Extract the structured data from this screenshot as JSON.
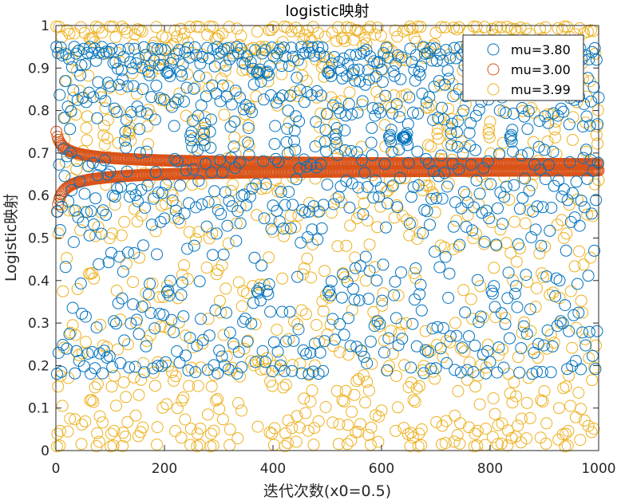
{
  "chart_data": {
    "type": "scatter",
    "title": "logistic映射",
    "xlabel": "迭代次数(x0=0.5)",
    "ylabel": "Logistic映射",
    "xlim": [
      0,
      1000
    ],
    "ylim": [
      0,
      1
    ],
    "x_ticks": [
      0,
      200,
      400,
      600,
      800,
      1000
    ],
    "y_ticks": [
      0,
      0.1,
      0.2,
      0.3,
      0.4,
      0.5,
      0.6,
      0.7,
      0.8,
      0.9,
      1
    ],
    "x_tick_labels": [
      "0",
      "200",
      "400",
      "600",
      "800",
      "1000"
    ],
    "y_tick_labels": [
      "0",
      "0.1",
      "0.2",
      "0.3",
      "0.4",
      "0.5",
      "0.6",
      "0.7",
      "0.8",
      "0.9",
      "1"
    ],
    "grid": false,
    "legend_position": "top-right",
    "marker": "open-circle",
    "iterations": 1000,
    "x0": 0.5,
    "series": [
      {
        "name": "mu=3.80",
        "mu": 3.8,
        "color": "#0072BD"
      },
      {
        "name": "mu=3.00",
        "mu": 3.0,
        "color": "#D95319"
      },
      {
        "name": "mu=3.99",
        "mu": 3.99,
        "color": "#EDB120"
      }
    ]
  }
}
